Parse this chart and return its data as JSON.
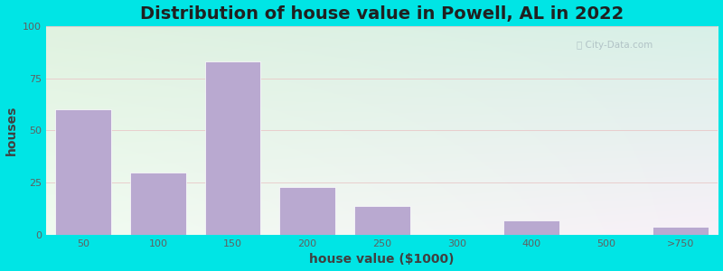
{
  "title": "Distribution of house value in Powell, AL in 2022",
  "xlabel": "house value ($1000)",
  "ylabel": "houses",
  "bar_labels": [
    "50",
    "100",
    "150",
    "200",
    "250",
    "300",
    "400",
    "500",
    ">750"
  ],
  "bar_values": [
    60,
    30,
    83,
    23,
    14,
    0,
    7,
    0,
    4
  ],
  "bar_color": "#b9a9d0",
  "bar_edge_color": "#ffffff",
  "ylim": [
    0,
    100
  ],
  "yticks": [
    0,
    25,
    50,
    75,
    100
  ],
  "background_outer": "#00e5e5",
  "grad_topleft": [
    0.878,
    0.961,
    0.878
  ],
  "grad_topright": [
    0.878,
    0.961,
    0.878
  ],
  "grad_bottomleft": [
    0.941,
    1.0,
    0.941
  ],
  "grad_bottomright": [
    1.0,
    0.961,
    1.0
  ],
  "title_fontsize": 14,
  "axis_label_fontsize": 10,
  "tick_fontsize": 8,
  "tick_color": "#606060",
  "watermark_text": "City-Data.com",
  "grid_color": "#e8c8c8",
  "grid_linewidth": 0.6,
  "bar_width": 0.75
}
